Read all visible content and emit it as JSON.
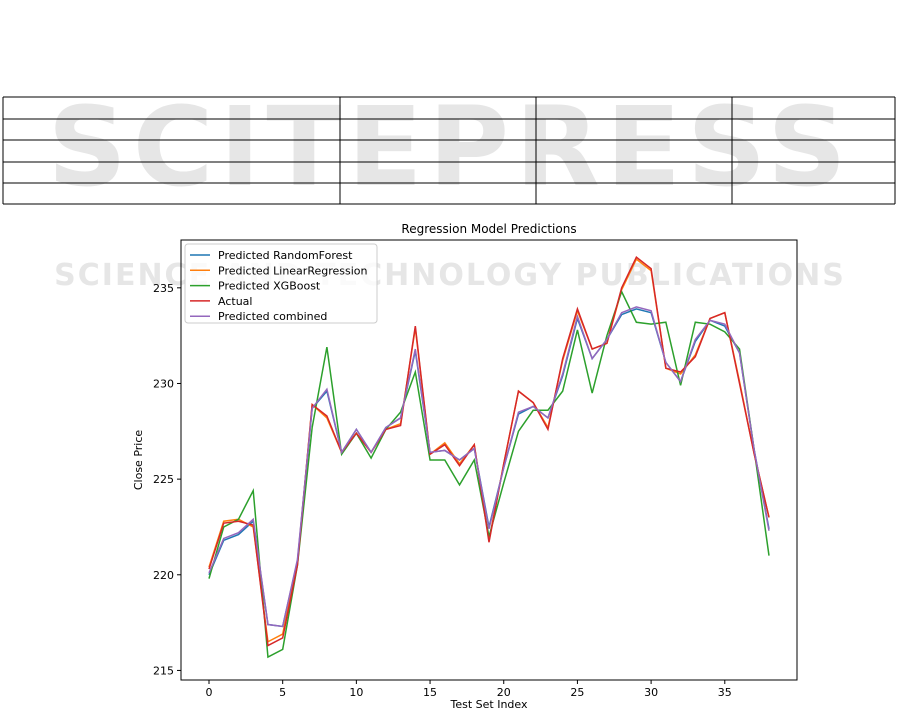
{
  "watermark": {
    "title": "SCITEPRESS",
    "subtitle": "SCIENCE AND TECHNOLOGY PUBLICATIONS"
  },
  "chart_data": {
    "type": "line",
    "title": "Regression Model Predictions",
    "x_label": "Test Set Index",
    "y_label": "Close Price",
    "x": [
      0,
      1,
      2,
      3,
      4,
      5,
      6,
      7,
      8,
      9,
      10,
      11,
      12,
      13,
      14,
      15,
      16,
      17,
      18,
      19,
      20,
      21,
      22,
      23,
      24,
      25,
      26,
      27,
      28,
      29,
      30,
      31,
      32,
      33,
      34,
      35,
      36,
      37,
      38
    ],
    "xlim": [
      -1.9,
      39.9
    ],
    "xticks": [
      0,
      5,
      10,
      15,
      20,
      25,
      30,
      35
    ],
    "ylim": [
      214.5,
      237.5
    ],
    "yticks": [
      215,
      220,
      225,
      230,
      235
    ],
    "legend": "upper left",
    "series": [
      {
        "name": "Predicted RandomForest",
        "color": "#1f77b4",
        "values": [
          220.0,
          221.8,
          222.1,
          222.8,
          217.4,
          217.3,
          220.7,
          228.7,
          229.6,
          226.4,
          227.6,
          226.4,
          227.7,
          228.2,
          231.7,
          226.4,
          226.5,
          226.0,
          226.6,
          222.5,
          225.6,
          228.4,
          228.8,
          228.2,
          230.4,
          233.4,
          231.3,
          232.3,
          233.6,
          233.9,
          233.7,
          231.1,
          230.1,
          232.2,
          233.3,
          233.0,
          231.6,
          226.5,
          222.4
        ]
      },
      {
        "name": "Predicted LinearRegression",
        "color": "#ff7f0e",
        "values": [
          220.4,
          222.8,
          222.9,
          222.5,
          216.5,
          216.9,
          220.6,
          228.9,
          228.2,
          226.4,
          227.4,
          226.4,
          227.6,
          227.9,
          232.9,
          226.3,
          226.9,
          225.8,
          226.8,
          221.8,
          225.8,
          229.6,
          229.0,
          227.7,
          231.2,
          233.8,
          231.8,
          232.1,
          234.9,
          236.5,
          235.9,
          230.8,
          230.5,
          231.5,
          233.4,
          233.7,
          230.1,
          226.3,
          223.0
        ]
      },
      {
        "name": "Predicted XGBoost",
        "color": "#2ca02c",
        "values": [
          219.8,
          222.5,
          222.9,
          224.4,
          215.7,
          216.1,
          220.5,
          227.7,
          231.9,
          226.3,
          227.4,
          226.1,
          227.6,
          228.5,
          230.6,
          226.0,
          226.0,
          224.7,
          226.0,
          222.0,
          224.8,
          227.5,
          228.6,
          228.6,
          229.6,
          232.8,
          229.5,
          232.5,
          234.8,
          233.2,
          233.1,
          233.2,
          229.9,
          233.2,
          233.1,
          232.7,
          231.8,
          226.5,
          221.0
        ]
      },
      {
        "name": "Actual",
        "color": "#d62728",
        "values": [
          220.3,
          222.7,
          222.8,
          222.6,
          216.3,
          216.7,
          220.5,
          228.9,
          228.3,
          226.4,
          227.4,
          226.4,
          227.6,
          227.8,
          233.0,
          226.3,
          226.8,
          225.7,
          226.8,
          221.7,
          225.8,
          229.6,
          229.0,
          227.6,
          231.3,
          233.9,
          231.8,
          232.1,
          235.0,
          236.6,
          236.0,
          230.8,
          230.6,
          231.4,
          233.4,
          233.7,
          230.0,
          226.3,
          223.0
        ]
      },
      {
        "name": "Predicted combined",
        "color": "#9467bd",
        "values": [
          220.1,
          221.9,
          222.2,
          222.9,
          217.4,
          217.3,
          220.8,
          228.7,
          229.7,
          226.4,
          227.6,
          226.4,
          227.7,
          228.2,
          231.8,
          226.4,
          226.5,
          226.0,
          226.6,
          222.4,
          225.6,
          228.5,
          228.8,
          228.2,
          230.5,
          233.5,
          231.3,
          232.3,
          233.7,
          234.0,
          233.8,
          231.1,
          230.1,
          232.3,
          233.3,
          233.1,
          231.6,
          226.5,
          222.3
        ]
      }
    ]
  }
}
